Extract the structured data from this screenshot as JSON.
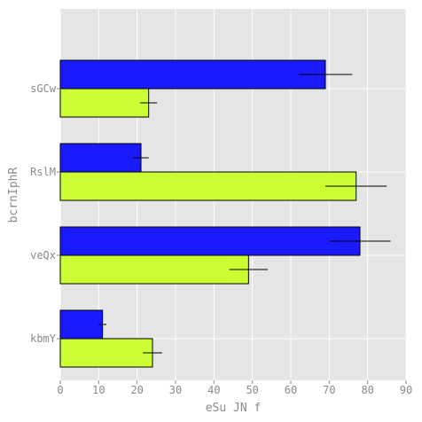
{
  "chart_data": {
    "type": "bar",
    "orientation": "horizontal",
    "xlabel": "eSu JN f",
    "ylabel": "bcrnIphR",
    "xlim": [
      0,
      90
    ],
    "xticks": [
      0,
      10,
      20,
      30,
      40,
      50,
      60,
      70,
      80,
      90
    ],
    "grid": true,
    "categories": [
      "kbmY",
      "veQx",
      "RslM",
      "sGCw"
    ],
    "series": [
      {
        "color": "#ccff33",
        "values": [
          24,
          49,
          77,
          23
        ],
        "errors": [
          2.5,
          5,
          8,
          2.2
        ]
      },
      {
        "color": "#1a1aff",
        "values": [
          11,
          78,
          21,
          69
        ],
        "errors": [
          1,
          8,
          2,
          7
        ]
      }
    ]
  }
}
